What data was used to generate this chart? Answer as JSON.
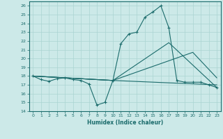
{
  "xlabel": "Humidex (Indice chaleur)",
  "xlim": [
    -0.5,
    23.5
  ],
  "ylim": [
    14,
    26.5
  ],
  "yticks": [
    14,
    15,
    16,
    17,
    18,
    19,
    20,
    21,
    22,
    23,
    24,
    25,
    26
  ],
  "xticks": [
    0,
    1,
    2,
    3,
    4,
    5,
    6,
    7,
    8,
    9,
    10,
    11,
    12,
    13,
    14,
    15,
    16,
    17,
    18,
    19,
    20,
    21,
    22,
    23
  ],
  "bg_color": "#cce9e8",
  "line_color": "#1a6b6b",
  "grid_color": "#aad4d2",
  "series": [
    {
      "x": [
        0,
        1,
        2,
        3,
        4,
        5,
        6,
        7,
        8,
        9,
        10,
        11,
        12,
        13,
        14,
        15,
        16,
        17,
        18,
        19,
        20,
        21,
        22,
        23
      ],
      "y": [
        18,
        17.6,
        17.4,
        17.7,
        17.8,
        17.6,
        17.5,
        17.1,
        14.7,
        15.0,
        17.5,
        21.7,
        22.8,
        23.0,
        24.7,
        25.3,
        26.0,
        23.5,
        17.5,
        17.3,
        17.3,
        17.3,
        17.0,
        16.7
      ],
      "marker": "+"
    },
    {
      "x": [
        0,
        10,
        17,
        23
      ],
      "y": [
        18,
        17.5,
        21.8,
        16.7
      ],
      "marker": null
    },
    {
      "x": [
        0,
        10,
        20,
        23
      ],
      "y": [
        18,
        17.5,
        20.7,
        17.8
      ],
      "marker": null
    },
    {
      "x": [
        0,
        10,
        23
      ],
      "y": [
        18,
        17.5,
        17.0
      ],
      "marker": null
    }
  ]
}
